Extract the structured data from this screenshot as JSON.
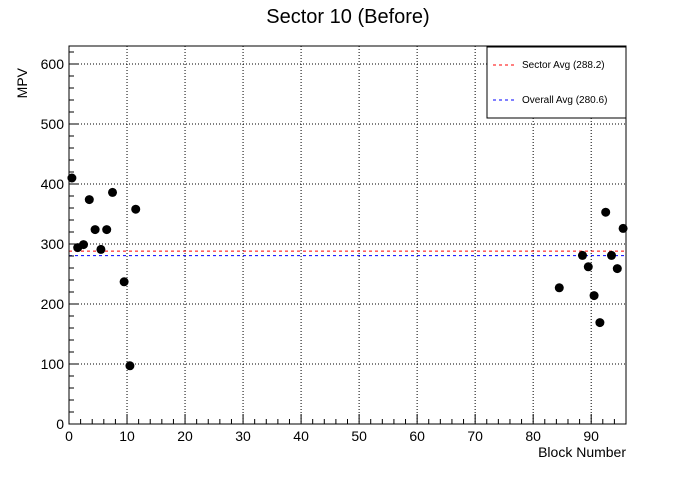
{
  "chart_data": {
    "type": "scatter",
    "title": "Sector 10 (Before)",
    "xlabel": "Block Number",
    "ylabel": "MPV",
    "xlim": [
      0,
      96
    ],
    "ylim": [
      0,
      630
    ],
    "x_ticks": [
      0,
      10,
      20,
      30,
      40,
      50,
      60,
      70,
      80,
      90
    ],
    "y_ticks": [
      0,
      100,
      200,
      300,
      400,
      500,
      600
    ],
    "grid": true,
    "legend_position": "top-right",
    "points": [
      {
        "x": 0.5,
        "y": 410
      },
      {
        "x": 1.5,
        "y": 294
      },
      {
        "x": 2.5,
        "y": 299
      },
      {
        "x": 3.5,
        "y": 374
      },
      {
        "x": 4.5,
        "y": 324
      },
      {
        "x": 5.5,
        "y": 291
      },
      {
        "x": 6.5,
        "y": 324
      },
      {
        "x": 7.5,
        "y": 386
      },
      {
        "x": 9.5,
        "y": 237
      },
      {
        "x": 10.5,
        "y": 97
      },
      {
        "x": 11.5,
        "y": 358
      },
      {
        "x": 84.5,
        "y": 227
      },
      {
        "x": 88.5,
        "y": 281
      },
      {
        "x": 89.5,
        "y": 262
      },
      {
        "x": 90.5,
        "y": 214
      },
      {
        "x": 91.5,
        "y": 169
      },
      {
        "x": 92.5,
        "y": 353
      },
      {
        "x": 93.5,
        "y": 281
      },
      {
        "x": 94.5,
        "y": 259
      },
      {
        "x": 95.5,
        "y": 326
      }
    ],
    "reference_lines": [
      {
        "name": "Sector Avg (288.2)",
        "value": 288.2,
        "color": "#ff0000",
        "style": "dashed"
      },
      {
        "name": "Overall Avg (280.6)",
        "value": 280.6,
        "color": "#0000ff",
        "style": "dashed"
      }
    ],
    "marker_color": "#000000"
  }
}
